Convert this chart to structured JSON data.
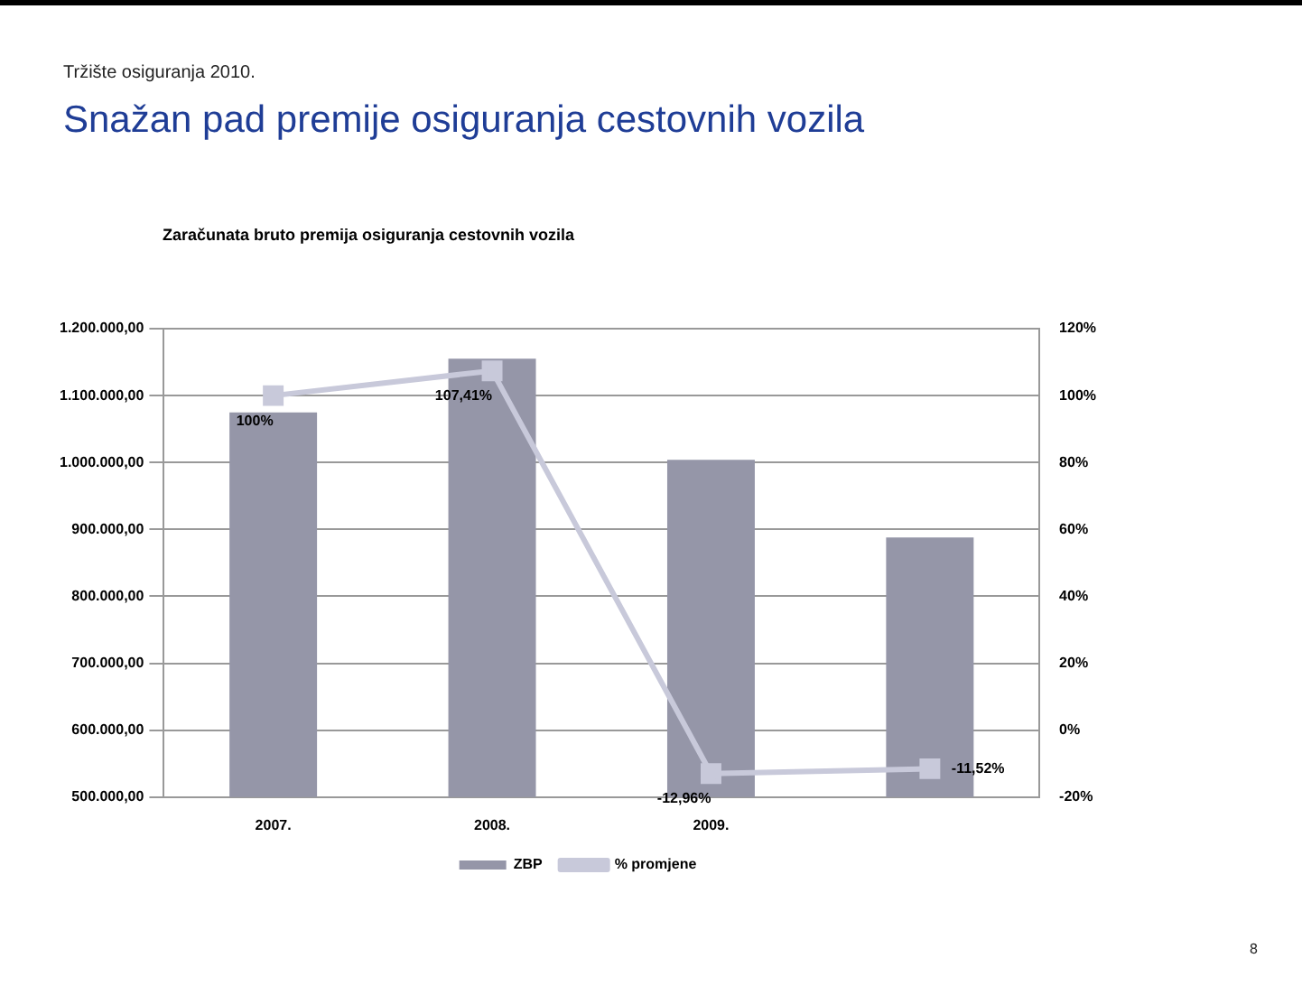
{
  "chart_data": {
    "type": "bar",
    "title": "Snažan pad premije osiguranja cestovnih vozila",
    "subtitle": "Zaračunata bruto premija  osiguranja cestovnih vozila",
    "annotations": [
      "Tržište osiguranja 2010.",
      "8"
    ],
    "categories": [
      "2007.",
      "2008.",
      "2009.",
      null
    ],
    "series": [
      {
        "name": "ZBP",
        "color": "#9596a8",
        "values": [
          1075000,
          1155000,
          1004000,
          888000
        ]
      },
      {
        "name": "% promjene",
        "type": "line",
        "axis": "y2",
        "color": "#c8c9da",
        "values": [
          100,
          107.41,
          -12.96,
          -11.52
        ],
        "value_labels": [
          "100%",
          "107,41%",
          "-12,96%",
          "-11,52%"
        ]
      }
    ],
    "ylim": [
      500000,
      1200000
    ],
    "yticks": [
      {
        "value": 500000,
        "label": "500.000,00"
      },
      {
        "value": 600000,
        "label": "600.000,00"
      },
      {
        "value": 700000,
        "label": "700.000,00"
      },
      {
        "value": 800000,
        "label": "800.000,00"
      },
      {
        "value": 900000,
        "label": "900.000,00"
      },
      {
        "value": 1000000,
        "label": "1.000.000,00"
      },
      {
        "value": 1100000,
        "label": "1.100.000,00"
      },
      {
        "value": 1200000,
        "label": "1.200.000,00"
      }
    ],
    "y2lim": [
      -20,
      120
    ],
    "y2ticks": [
      {
        "value": -20,
        "label": "-20%"
      },
      {
        "value": 0,
        "label": "0%"
      },
      {
        "value": 20,
        "label": "20%"
      },
      {
        "value": 40,
        "label": "40%"
      },
      {
        "value": 60,
        "label": "60%"
      },
      {
        "value": 80,
        "label": "80%"
      },
      {
        "value": 100,
        "label": "100%"
      },
      {
        "value": 120,
        "label": "120%"
      }
    ],
    "grid": "y",
    "legend": "bottom",
    "marker": "square",
    "line_style": "solid"
  }
}
